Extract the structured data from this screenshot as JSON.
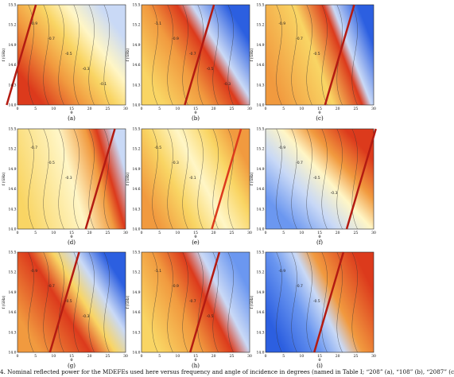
{
  "figure": {
    "caption_fragment": "4.  Nominal reflected power for the MDEFEs used here versus frequency and angle of incidence in degrees (named in Table I; “208” (a), “108” (b), “2087” (c"
  },
  "colors": {
    "deep_blue": "#2c5fe0",
    "mid_blue": "#6b97f0",
    "light_blue": "#c9d9f6",
    "pale_yellow": "#fff6c6",
    "yellow": "#f9d564",
    "orange": "#f19a3f",
    "red": "#dc3a1c",
    "dark_red": "#b31b12"
  },
  "chart_data": [
    {
      "id": "a",
      "type": "heatmap",
      "caption": "(a)",
      "ylabel": "f (GHz)",
      "xlabel": "θ",
      "xticks": [
        "0",
        "5",
        "10",
        "15",
        "20",
        "25",
        "30"
      ],
      "yticks": [
        "15.5",
        "15.2",
        "14.9",
        "14.6",
        "14.3",
        "14.0"
      ],
      "contour_labels": [
        "-0.9",
        "-0.7",
        "-0.5",
        "-0.3",
        "-0.1"
      ],
      "xlim": [
        0,
        30
      ],
      "ylim": [
        14,
        15.5
      ]
    },
    {
      "id": "b",
      "type": "heatmap",
      "caption": "(b)",
      "ylabel": "f (GHz)",
      "xlabel": "θ",
      "xticks": [
        "0",
        "5",
        "10",
        "15",
        "20",
        "25",
        "30"
      ],
      "yticks": [
        "15.5",
        "15.2",
        "14.9",
        "14.6",
        "14.3",
        "14.0"
      ],
      "contour_labels": [
        "-1.1",
        "-0.9",
        "-0.7",
        "-0.5",
        "-0.3"
      ],
      "xlim": [
        0,
        30
      ],
      "ylim": [
        14,
        15.5
      ]
    },
    {
      "id": "c",
      "type": "heatmap",
      "caption": "(c)",
      "ylabel": "f (GHz)",
      "xlabel": "θ",
      "xticks": [
        "0",
        "5",
        "10",
        "15",
        "20",
        "25",
        "30"
      ],
      "yticks": [
        "15.5",
        "15.2",
        "14.9",
        "14.6",
        "14.3",
        "14.0"
      ],
      "contour_labels": [
        "-0.9",
        "-0.7",
        "-0.5"
      ],
      "xlim": [
        0,
        30
      ],
      "ylim": [
        14,
        15.5
      ]
    },
    {
      "id": "d",
      "type": "heatmap",
      "caption": "(d)",
      "ylabel": "f (GHz)",
      "xlabel": "θ",
      "xticks": [
        "0",
        "5",
        "10",
        "15",
        "20",
        "25",
        "30"
      ],
      "yticks": [
        "15.5",
        "15.2",
        "14.9",
        "14.6",
        "14.3",
        "14.0"
      ],
      "contour_labels": [
        "-0.7",
        "-0.5",
        "-0.3"
      ],
      "xlim": [
        0,
        30
      ],
      "ylim": [
        14,
        15.5
      ]
    },
    {
      "id": "e",
      "type": "heatmap",
      "caption": "(e)",
      "ylabel": "f (GHz)",
      "xlabel": "θ",
      "xticks": [
        "0",
        "5",
        "10",
        "15",
        "20",
        "25",
        "30"
      ],
      "yticks": [
        "15.5",
        "15.2",
        "14.9",
        "14.6",
        "14.3",
        "14.0"
      ],
      "contour_labels": [
        "-0.5",
        "-0.3",
        "-0.1"
      ],
      "xlim": [
        0,
        30
      ],
      "ylim": [
        14,
        15.5
      ]
    },
    {
      "id": "f",
      "type": "heatmap",
      "caption": "(f)",
      "ylabel": "f (GHz)",
      "xlabel": "θ",
      "xticks": [
        "0",
        "5",
        "10",
        "15",
        "20",
        "25",
        "30"
      ],
      "yticks": [
        "15.5",
        "15.2",
        "14.9",
        "14.6",
        "14.3",
        "14.0"
      ],
      "contour_labels": [
        "-0.9",
        "-0.7",
        "-0.5",
        "-0.3"
      ],
      "xlim": [
        0,
        30
      ],
      "ylim": [
        14,
        15.5
      ]
    },
    {
      "id": "g",
      "type": "heatmap",
      "caption": "(g)",
      "ylabel": "f (GHz)",
      "xlabel": "θ",
      "xticks": [
        "0",
        "5",
        "10",
        "15",
        "20",
        "25",
        "30"
      ],
      "yticks": [
        "15.5",
        "15.2",
        "14.9",
        "14.6",
        "14.3",
        "14.0"
      ],
      "contour_labels": [
        "-0.9",
        "-0.7",
        "-0.5",
        "-0.3"
      ],
      "xlim": [
        0,
        30
      ],
      "ylim": [
        14,
        15.5
      ]
    },
    {
      "id": "h",
      "type": "heatmap",
      "caption": "(h)",
      "ylabel": "f (GHz)",
      "xlabel": "θ",
      "xticks": [
        "0",
        "5",
        "10",
        "15",
        "20",
        "25",
        "30"
      ],
      "yticks": [
        "15.5",
        "15.2",
        "14.9",
        "14.6",
        "14.3",
        "14.0"
      ],
      "contour_labels": [
        "-1.1",
        "-0.9",
        "-0.7",
        "-0.5"
      ],
      "xlim": [
        0,
        30
      ],
      "ylim": [
        14,
        15.5
      ]
    },
    {
      "id": "i",
      "type": "heatmap",
      "caption": "(i)",
      "ylabel": "f (GHz)",
      "xlabel": "θ",
      "xticks": [
        "0",
        "5",
        "10",
        "15",
        "20",
        "25",
        "30"
      ],
      "yticks": [
        "15.5",
        "15.2",
        "14.9",
        "14.6",
        "14.3",
        "14.0"
      ],
      "contour_labels": [
        "-0.9",
        "-0.7",
        "-0.5"
      ],
      "xlim": [
        0,
        30
      ],
      "ylim": [
        14,
        15.5
      ]
    }
  ]
}
